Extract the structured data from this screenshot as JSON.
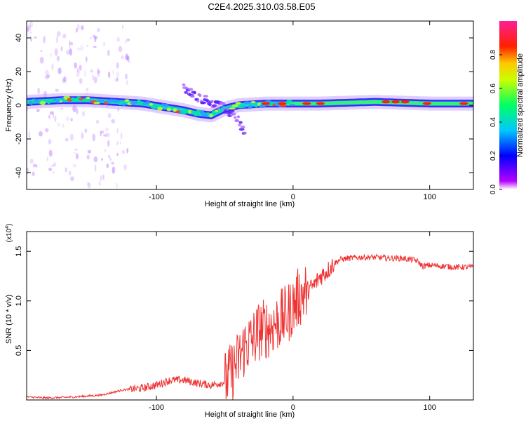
{
  "figure_title": "C2E4.2025.310.03.58.E05",
  "chart_data": [
    {
      "type": "heatmap",
      "title": "C2E4.2025.310.03.58.E05",
      "xlabel": "Height of straight line (km)",
      "ylabel": "Frequency (Hz)",
      "xlim": [
        -195,
        132
      ],
      "ylim": [
        -50,
        50
      ],
      "x_ticks": [
        -100,
        0,
        100
      ],
      "x_tick_labels": [
        "-100",
        "0",
        "100"
      ],
      "y_ticks": [
        -40,
        -20,
        0,
        20,
        40
      ],
      "y_tick_labels": [
        "-40",
        "-20",
        "0",
        "20",
        "40"
      ],
      "colorbar": {
        "label": "Normalized spectral amplitude",
        "range": [
          0.0,
          1.0
        ],
        "ticks": [
          0.0,
          0.2,
          0.4,
          0.6,
          0.8
        ],
        "tick_labels": [
          "0.0",
          "0.2",
          "0.4",
          "0.6",
          "0.8"
        ],
        "colormap": "rainbow"
      },
      "ridge": [
        {
          "x": -195,
          "f": 2
        },
        {
          "x": -170,
          "f": 3
        },
        {
          "x": -150,
          "f": 3
        },
        {
          "x": -130,
          "f": 2
        },
        {
          "x": -110,
          "f": 1
        },
        {
          "x": -95,
          "f": -1
        },
        {
          "x": -80,
          "f": -3
        },
        {
          "x": -70,
          "f": -5
        },
        {
          "x": -60,
          "f": -6
        },
        {
          "x": -50,
          "f": -2
        },
        {
          "x": -40,
          "f": 0
        },
        {
          "x": -20,
          "f": 1
        },
        {
          "x": 0,
          "f": 1
        },
        {
          "x": 20,
          "f": 1
        },
        {
          "x": 60,
          "f": 2
        },
        {
          "x": 100,
          "f": 1
        },
        {
          "x": 132,
          "f": 1
        }
      ],
      "branch": [
        {
          "x": -80,
          "f": 10
        },
        {
          "x": -70,
          "f": 5
        },
        {
          "x": -60,
          "f": 2
        },
        {
          "x": -50,
          "f": -2
        },
        {
          "x": -40,
          "f": -8
        },
        {
          "x": -35,
          "f": -18
        }
      ]
    },
    {
      "type": "line",
      "xlabel": "Height of straight line (km)",
      "ylabel": "SNR (10 * v/v)",
      "y_scale_label": "(x10",
      "y_scale_exp": "4",
      "y_scale_close": ")",
      "xlim": [
        -195,
        132
      ],
      "ylim": [
        0.0,
        1.7
      ],
      "x_ticks": [
        -100,
        0,
        100
      ],
      "x_tick_labels": [
        "-100",
        "0",
        "100"
      ],
      "y_ticks": [
        0.5,
        1.0,
        1.5
      ],
      "y_tick_labels": [
        "0.5",
        "1.0",
        "1.5"
      ],
      "line_color": "#ee3333",
      "series": [
        {
          "name": "SNR",
          "x": [
            -195,
            -180,
            -160,
            -140,
            -125,
            -110,
            -100,
            -90,
            -80,
            -70,
            -60,
            -50,
            -45,
            -40,
            -35,
            -30,
            -25,
            -20,
            -15,
            -10,
            -5,
            0,
            5,
            10,
            15,
            20,
            25,
            30,
            35,
            40,
            50,
            60,
            70,
            80,
            90,
            95,
            100,
            110,
            120,
            132
          ],
          "y": [
            0.03,
            0.02,
            0.03,
            0.05,
            0.1,
            0.12,
            0.15,
            0.2,
            0.2,
            0.17,
            0.15,
            0.18,
            0.28,
            0.4,
            0.55,
            0.6,
            0.7,
            0.72,
            0.75,
            0.8,
            0.85,
            0.95,
            1.05,
            1.1,
            1.15,
            1.25,
            1.3,
            1.38,
            1.42,
            1.43,
            1.44,
            1.44,
            1.43,
            1.43,
            1.41,
            1.35,
            1.36,
            1.35,
            1.34,
            1.34
          ]
        }
      ]
    }
  ]
}
